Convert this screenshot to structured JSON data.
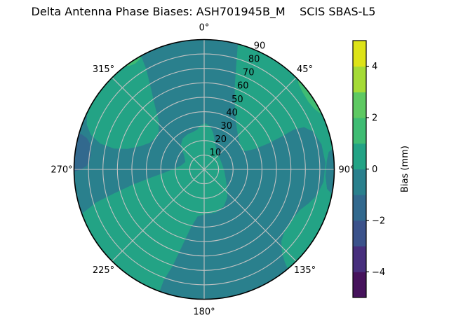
{
  "title": "Delta Antenna Phase Biases: ASH701945B_M    SCIS SBAS-L5",
  "chart_data": {
    "type": "heatmap",
    "subtype": "polar_filled_contour",
    "theta_zero_location": "N",
    "theta_direction": "clockwise",
    "rmin": 0,
    "rmax": 90,
    "grid": true,
    "grid_color": "#c2c2c2",
    "angle_ticks": [
      {
        "angle": 0,
        "label": "0°"
      },
      {
        "angle": 45,
        "label": "45°"
      },
      {
        "angle": 90,
        "label": "90°"
      },
      {
        "angle": 135,
        "label": "135°"
      },
      {
        "angle": 180,
        "label": "180°"
      },
      {
        "angle": 225,
        "label": "225°"
      },
      {
        "angle": 270,
        "label": "270°"
      },
      {
        "angle": 315,
        "label": "315°"
      }
    ],
    "radial_ticks": [
      {
        "r": 10,
        "label": "10"
      },
      {
        "r": 20,
        "label": "20"
      },
      {
        "r": 30,
        "label": "30"
      },
      {
        "r": 40,
        "label": "40"
      },
      {
        "r": 50,
        "label": "50"
      },
      {
        "r": 60,
        "label": "60"
      },
      {
        "r": 70,
        "label": "70"
      },
      {
        "r": 80,
        "label": "80"
      },
      {
        "r": 90,
        "label": "90"
      }
    ],
    "radial_label_azimuth_deg": 22.5,
    "levels": [
      -5,
      -4,
      -3,
      -2,
      -1,
      0,
      1,
      2,
      3,
      4,
      5
    ],
    "level_colors_ascending": [
      "#46135c",
      "#472f7d",
      "#3b528b",
      "#32698e",
      "#2a808d",
      "#23a385",
      "#3fbc73",
      "#5ec962",
      "#a5db36",
      "#dde318"
    ],
    "colorbar": {
      "label": "Bias (mm)",
      "vmin": -5,
      "vmax": 5,
      "tick_values": [
        4,
        2,
        0,
        -2,
        -4
      ],
      "tick_labels": [
        "4",
        "2",
        "0",
        "−2",
        "−4"
      ]
    },
    "regions": [
      {
        "name": "background-disk",
        "level": "-1 to 0",
        "color": "#2a808d",
        "shape": "disk"
      },
      {
        "name": "center-southwest",
        "level": "0 to 1",
        "color": "#23a385",
        "points": [
          [
            350,
            28
          ],
          [
            356,
            31
          ],
          [
            2,
            32
          ],
          [
            8,
            30
          ],
          [
            14,
            26
          ],
          [
            22,
            20
          ],
          [
            32,
            16
          ],
          [
            45,
            14
          ],
          [
            60,
            13
          ],
          [
            78,
            13
          ],
          [
            95,
            14
          ],
          [
            112,
            16
          ],
          [
            128,
            20
          ],
          [
            140,
            25
          ],
          [
            152,
            29
          ],
          [
            165,
            31
          ],
          [
            178,
            31
          ],
          [
            188,
            33
          ],
          [
            193,
            42
          ],
          [
            196,
            55
          ],
          [
            198,
            70
          ],
          [
            200,
            82
          ],
          [
            200,
            90
          ],
          [
            205,
            90
          ],
          [
            210,
            90
          ],
          [
            215,
            90
          ],
          [
            220,
            90
          ],
          [
            225,
            90
          ],
          [
            230,
            90
          ],
          [
            235,
            90
          ],
          [
            240,
            90
          ],
          [
            245,
            90
          ],
          [
            250,
            90
          ],
          [
            253,
            78
          ],
          [
            255,
            65
          ],
          [
            258,
            50
          ],
          [
            261,
            38
          ],
          [
            265,
            28
          ],
          [
            271,
            21
          ],
          [
            280,
            16
          ],
          [
            292,
            14
          ],
          [
            305,
            17
          ],
          [
            315,
            23
          ],
          [
            325,
            26
          ],
          [
            335,
            27
          ],
          [
            343,
            27
          ]
        ]
      },
      {
        "name": "northwest-crescent",
        "level": "0 to 1",
        "color": "#23a385",
        "points": [
          [
            296,
            90
          ],
          [
            301,
            90
          ],
          [
            306,
            90
          ],
          [
            311,
            90
          ],
          [
            316,
            90
          ],
          [
            321,
            90
          ],
          [
            326,
            90
          ],
          [
            331,
            90
          ],
          [
            330,
            80
          ],
          [
            327,
            68
          ],
          [
            322,
            55
          ],
          [
            317,
            46
          ],
          [
            310,
            41
          ],
          [
            303,
            40
          ],
          [
            296,
            42
          ],
          [
            290,
            47
          ],
          [
            285,
            55
          ],
          [
            283,
            64
          ],
          [
            284,
            74
          ],
          [
            287,
            82
          ],
          [
            291,
            87
          ]
        ]
      },
      {
        "name": "east-region",
        "level": "0 to 1",
        "color": "#23a385",
        "points": [
          [
            15,
            90
          ],
          [
            17,
            76
          ],
          [
            20,
            62
          ],
          [
            25,
            50
          ],
          [
            31,
            42
          ],
          [
            39,
            36
          ],
          [
            48,
            32
          ],
          [
            56,
            30
          ],
          [
            62,
            29
          ],
          [
            66,
            31
          ],
          [
            68,
            38
          ],
          [
            68,
            48
          ],
          [
            67,
            58
          ],
          [
            66,
            68
          ],
          [
            67,
            75
          ],
          [
            71,
            80
          ],
          [
            78,
            83
          ],
          [
            87,
            84
          ],
          [
            96,
            83
          ],
          [
            103,
            80
          ],
          [
            108,
            76
          ],
          [
            113,
            72
          ],
          [
            120,
            70
          ],
          [
            127,
            70
          ],
          [
            133,
            73
          ],
          [
            137,
            79
          ],
          [
            139,
            85
          ],
          [
            140,
            90
          ],
          [
            135,
            90
          ],
          [
            130,
            90
          ],
          [
            125,
            90
          ],
          [
            120,
            90
          ],
          [
            115,
            90
          ],
          [
            110,
            90
          ],
          [
            105,
            90
          ],
          [
            101,
            90
          ],
          [
            99,
            86
          ],
          [
            93,
            84
          ],
          [
            86,
            85
          ],
          [
            82,
            87
          ],
          [
            81,
            90
          ],
          [
            75,
            90
          ],
          [
            70,
            90
          ],
          [
            65,
            90
          ],
          [
            60,
            90
          ],
          [
            55,
            90
          ],
          [
            50,
            90
          ],
          [
            45,
            90
          ],
          [
            40,
            90
          ],
          [
            35,
            90
          ],
          [
            30,
            90
          ],
          [
            25,
            90
          ],
          [
            20,
            90
          ]
        ]
      },
      {
        "name": "west-edge-blue-patch",
        "level": "-2 to -1",
        "color": "#32698e",
        "points": [
          [
            269,
            90
          ],
          [
            270,
            85
          ],
          [
            272,
            81
          ],
          [
            277,
            79
          ],
          [
            282,
            80
          ],
          [
            285,
            84
          ],
          [
            286,
            88
          ],
          [
            286,
            90
          ],
          [
            281,
            90
          ],
          [
            276,
            90
          ],
          [
            272,
            90
          ]
        ]
      },
      {
        "name": "northeast-rim-sliver",
        "level": "1 to 2",
        "color": "#3fbc73",
        "points": [
          [
            46,
            90
          ],
          [
            48,
            88
          ],
          [
            52,
            86.5
          ],
          [
            57,
            86
          ],
          [
            61,
            87
          ],
          [
            64,
            89
          ],
          [
            65,
            90
          ],
          [
            60,
            90
          ],
          [
            55,
            90
          ],
          [
            50,
            90
          ]
        ]
      },
      {
        "name": "northwest-rim-sliver",
        "level": "1 to 2",
        "color": "#3fbc73",
        "points": [
          [
            323,
            90
          ],
          [
            324,
            88.5
          ],
          [
            327,
            87.5
          ],
          [
            330,
            88.5
          ],
          [
            331,
            90
          ],
          [
            327,
            90
          ]
        ]
      }
    ]
  }
}
